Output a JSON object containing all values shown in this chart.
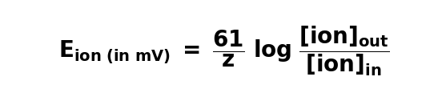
{
  "background_color": "#ffffff",
  "text_color": "#000000",
  "figsize": [
    5.47,
    1.26
  ],
  "dpi": 100
}
